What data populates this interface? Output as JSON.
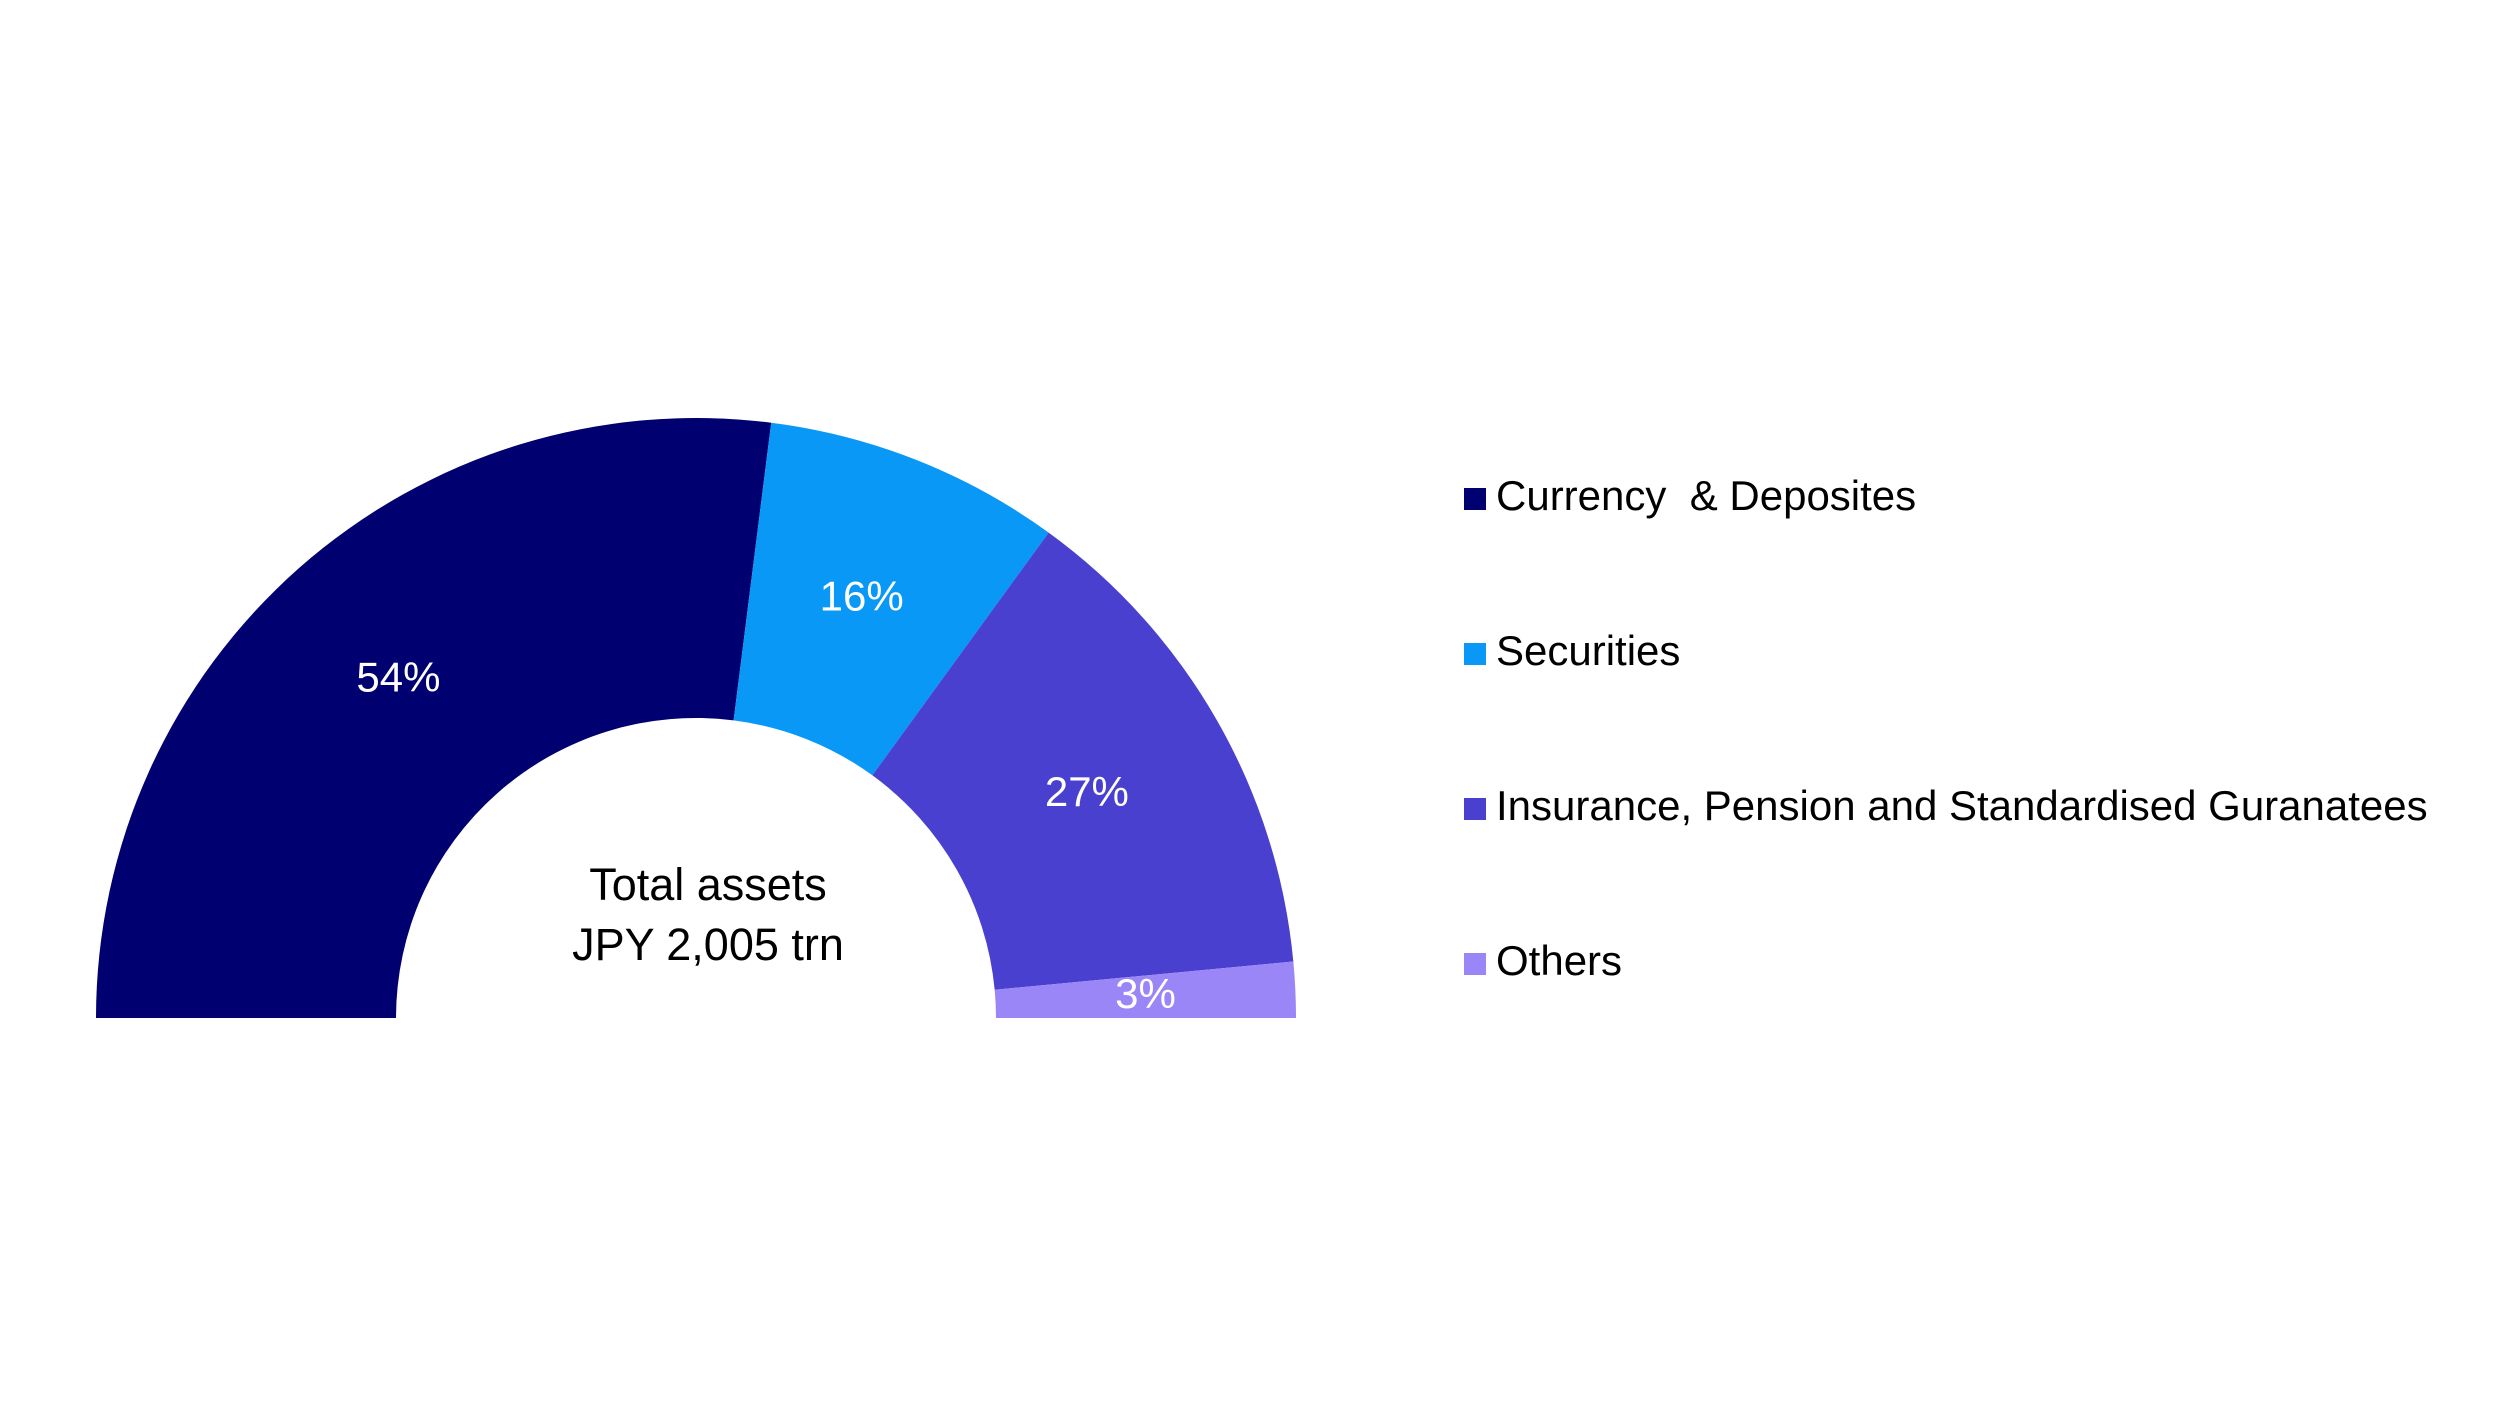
{
  "chart_data": {
    "type": "half-donut",
    "center_text": [
      "Total assets",
      "JPY 2,005 trn"
    ],
    "categories": [
      "Currency  & Deposites",
      "Securities",
      "Insurance, Pension and Standardised Guranatees",
      "Others"
    ],
    "values": [
      54,
      16,
      27,
      3
    ],
    "value_labels": [
      "54%",
      "16%",
      "27%",
      "3%"
    ],
    "colors": [
      "#000070",
      "#0a98f7",
      "#4a40cf",
      "#9b86f7"
    ],
    "legend": "right"
  }
}
